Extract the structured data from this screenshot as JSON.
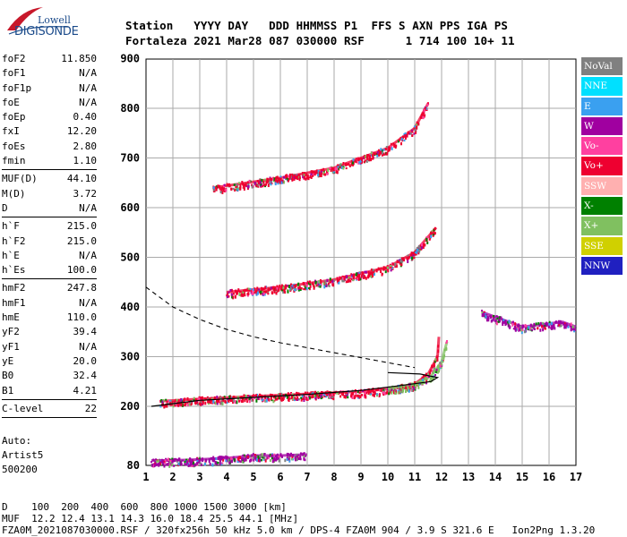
{
  "logo": {
    "line1": "Lowell",
    "line2": "DIGISONDE"
  },
  "header": {
    "line1": "Station   YYYY DAY   DDD HHMMSS P1  FFS S AXN PPS IGA PS",
    "line2": "Fortaleza 2021 Mar28 087 030000 RSF      1 714 100 10+ 11"
  },
  "params": [
    {
      "label": "foF2",
      "value": "11.850"
    },
    {
      "label": "foF1",
      "value": "N/A"
    },
    {
      "label": "foF1p",
      "value": "N/A"
    },
    {
      "label": "foE",
      "value": "N/A"
    },
    {
      "label": "foEp",
      "value": "0.40"
    },
    {
      "label": "fxI",
      "value": "12.20"
    },
    {
      "label": "foEs",
      "value": "2.80"
    },
    {
      "label": "fmin",
      "value": "1.10"
    },
    {
      "label": "MUF(D)",
      "value": "44.10"
    },
    {
      "label": "M(D)",
      "value": "3.72"
    },
    {
      "label": "D",
      "value": "N/A"
    },
    {
      "label": "h`F",
      "value": "215.0"
    },
    {
      "label": "h`F2",
      "value": "215.0"
    },
    {
      "label": "h`E",
      "value": "N/A"
    },
    {
      "label": "h`Es",
      "value": "100.0"
    },
    {
      "label": "hmF2",
      "value": "247.8"
    },
    {
      "label": "hmF1",
      "value": "N/A"
    },
    {
      "label": "hmE",
      "value": "110.0"
    },
    {
      "label": "yF2",
      "value": "39.4"
    },
    {
      "label": "yF1",
      "value": "N/A"
    },
    {
      "label": "yE",
      "value": "20.0"
    },
    {
      "label": "B0",
      "value": "32.4"
    },
    {
      "label": "B1",
      "value": "4.21"
    },
    {
      "label": "C-level",
      "value": "22"
    }
  ],
  "auto": {
    "line1": "Auto:",
    "line2": "Artist5",
    "line3": "500200"
  },
  "legend": [
    {
      "label": "NoVal",
      "color": "#808080"
    },
    {
      "label": "NNE",
      "color": "#00e0ff"
    },
    {
      "label": "E",
      "color": "#3aa0f0"
    },
    {
      "label": "W",
      "color": "#a000a0"
    },
    {
      "label": "Vo-",
      "color": "#ff40a0"
    },
    {
      "label": "Vo+",
      "color": "#ee0030"
    },
    {
      "label": "SSW",
      "color": "#ffb0b0"
    },
    {
      "label": "X-",
      "color": "#008000"
    },
    {
      "label": "X+",
      "color": "#80c060"
    },
    {
      "label": "SSE",
      "color": "#d0d000"
    },
    {
      "label": "NNW",
      "color": "#2020c0"
    }
  ],
  "footer": {
    "line1": "D    100  200  400  600  800 1000 1500 3000 [km]",
    "line2": "MUF  12.2 12.4 13.1 14.3 16.0 18.4 25.5 44.1 [MHz]",
    "line3": "FZA0M_2021087030000.RSF / 320fx256h 50 kHz 5.0 km / DPS-4 FZA0M 904 / 3.9 S 321.6 E   Ion2Png 1.3.20"
  },
  "chart_data": {
    "type": "scatter",
    "xlim": [
      1,
      17
    ],
    "ylim": [
      80,
      900
    ],
    "x_ticks": [
      "1",
      "2",
      "3",
      "4",
      "5",
      "6",
      "7",
      "8",
      "9",
      "10",
      "11",
      "12",
      "13",
      "14",
      "15",
      "16",
      "17"
    ],
    "y_ticks": [
      "80",
      "200",
      "300",
      "400",
      "500",
      "600",
      "700",
      "800",
      "900"
    ],
    "xlabel": "",
    "ylabel": "",
    "grid": true,
    "legend_position": "right",
    "traces": [
      {
        "name": "Es",
        "color": "#a000a0",
        "points": [
          [
            1.2,
            90
          ],
          [
            2,
            90
          ],
          [
            3,
            92
          ],
          [
            4,
            95
          ],
          [
            5,
            100
          ],
          [
            6,
            100
          ],
          [
            7,
            102
          ]
        ]
      },
      {
        "name": "F O-trace",
        "color": "#ee0030",
        "points": [
          [
            1.5,
            210
          ],
          [
            3,
            215
          ],
          [
            5,
            220
          ],
          [
            7,
            225
          ],
          [
            9,
            230
          ],
          [
            10,
            235
          ],
          [
            11,
            245
          ],
          [
            11.5,
            265
          ],
          [
            11.85,
            300
          ],
          [
            11.9,
            340
          ]
        ]
      },
      {
        "name": "F X-trace",
        "color": "#80c060",
        "points": [
          [
            10,
            235
          ],
          [
            11,
            245
          ],
          [
            11.6,
            260
          ],
          [
            12,
            290
          ],
          [
            12.2,
            330
          ]
        ]
      },
      {
        "name": "2nd hop",
        "color": "#ee0030",
        "points": [
          [
            4,
            430
          ],
          [
            6,
            440
          ],
          [
            8,
            455
          ],
          [
            10,
            480
          ],
          [
            11,
            510
          ],
          [
            11.8,
            560
          ]
        ]
      },
      {
        "name": "3rd hop",
        "color": "#ee0030",
        "points": [
          [
            3.5,
            640
          ],
          [
            6,
            660
          ],
          [
            8,
            680
          ],
          [
            10,
            720
          ],
          [
            11,
            760
          ],
          [
            11.5,
            810
          ]
        ]
      },
      {
        "name": "oblique",
        "color": "#a000a0",
        "points": [
          [
            13.5,
            390
          ],
          [
            14,
            380
          ],
          [
            14.5,
            370
          ],
          [
            15,
            360
          ],
          [
            16.5,
            370
          ],
          [
            17,
            360
          ]
        ]
      }
    ]
  }
}
